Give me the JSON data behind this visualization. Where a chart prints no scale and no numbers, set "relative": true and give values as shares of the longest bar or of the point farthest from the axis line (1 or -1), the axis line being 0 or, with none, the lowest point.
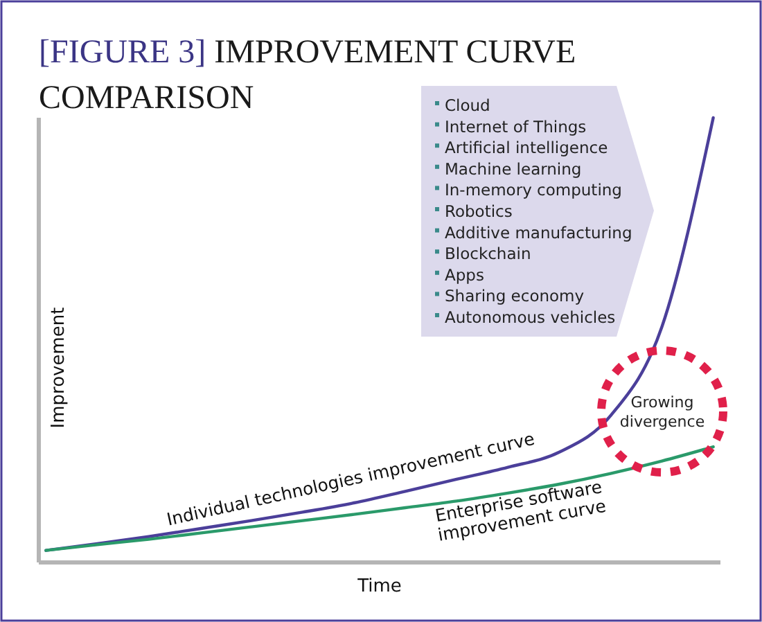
{
  "chart_data": {
    "type": "line",
    "title": "[FIGURE 3] IMPROVEMENT CURVE COMPARISON",
    "xlabel": "Time",
    "ylabel": "Improvement",
    "relative": true,
    "grid": false,
    "legend": false,
    "marker": "none",
    "line_style": "solid",
    "categories": [
      null,
      null,
      null,
      null,
      null,
      null,
      null,
      null,
      null,
      null,
      null,
      null,
      null,
      null
    ],
    "series": [
      {
        "name": "Individual technologies improvement curve",
        "color": "#4b3f9a",
        "values": [
          0.027,
          0.042,
          0.058,
          0.076,
          0.094,
          0.113,
          0.134,
          0.16,
          0.187,
          0.214,
          0.248,
          0.33,
          0.53,
          1
        ]
      },
      {
        "name": "Enterprise software improvement curve",
        "color": "#2a9a6a",
        "values": [
          0.027,
          0.04,
          0.052,
          0.066,
          0.08,
          0.094,
          0.108,
          0.123,
          0.138,
          0.156,
          0.176,
          0.2,
          0.228,
          0.26
        ]
      }
    ],
    "annotations": [
      "Cloud",
      "Internet of Things",
      "Artificial intelligence",
      "Machine learning",
      "In-memory computing",
      "Robotics",
      "Additive manufacturing",
      "Blockchain",
      "Apps",
      "Sharing economy",
      "Autonomous vehicles",
      {
        "text": "Growing divergence"
      }
    ]
  }
}
